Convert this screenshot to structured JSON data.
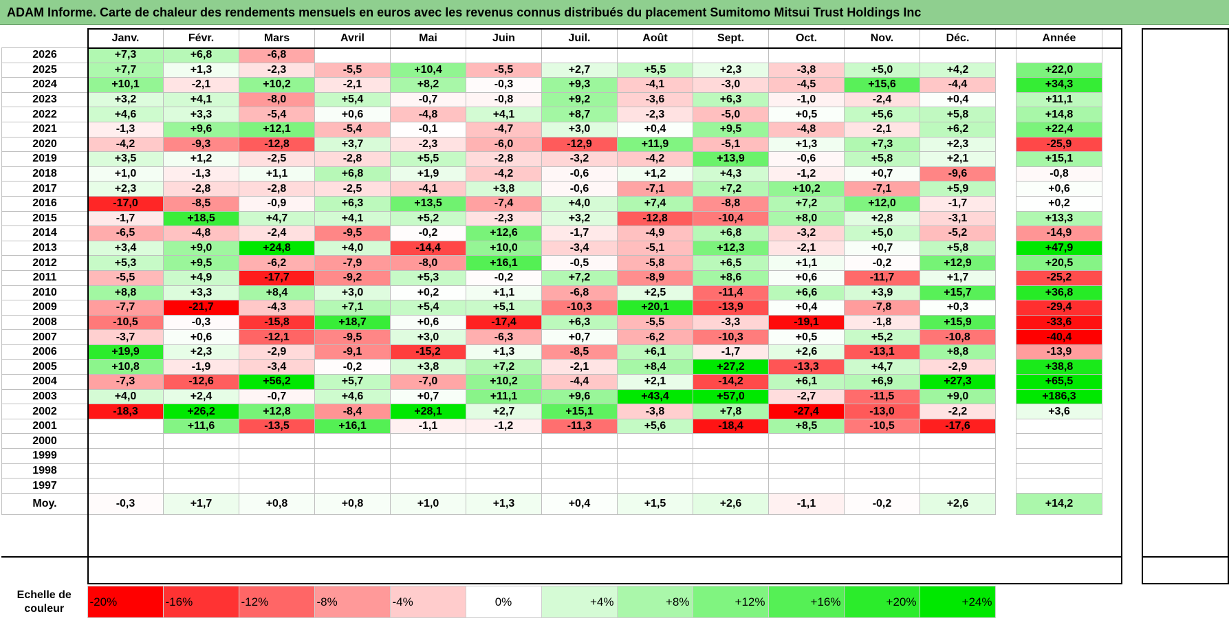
{
  "title": "ADAM Informe. Carte de chaleur des rendements mensuels en euros avec les revenus connus distribués du placement Sumitomo Mitsui Trust Holdings Inc",
  "chart_data": {
    "type": "heatmap",
    "title": "ADAM Informe. Carte de chaleur des rendements mensuels en euros avec les revenus connus distribués du placement Sumitomo Mitsui Trust Holdings Inc",
    "months": [
      "Janv.",
      "Févr.",
      "Mars",
      "Avril",
      "Mai",
      "Juin",
      "Juil.",
      "Août",
      "Sept.",
      "Oct.",
      "Nov.",
      "Déc."
    ],
    "year_header": "Année",
    "rows": [
      {
        "year": "2026",
        "values": [
          "+7,3",
          "+6,8",
          "-6,8",
          "",
          "",
          "",
          "",
          "",
          "",
          "",
          "",
          ""
        ],
        "annual": ""
      },
      {
        "year": "2025",
        "values": [
          "+7,7",
          "+1,3",
          "-2,3",
          "-5,5",
          "+10,4",
          "-5,5",
          "+2,7",
          "+5,5",
          "+2,3",
          "-3,8",
          "+5,0",
          "+4,2"
        ],
        "annual": "+22,0"
      },
      {
        "year": "2024",
        "values": [
          "+10,1",
          "-2,1",
          "+10,2",
          "-2,1",
          "+8,2",
          "-0,3",
          "+9,3",
          "-4,1",
          "-3,0",
          "-4,5",
          "+15,6",
          "-4,4"
        ],
        "annual": "+34,3"
      },
      {
        "year": "2023",
        "values": [
          "+3,2",
          "+4,1",
          "-8,0",
          "+5,4",
          "-0,7",
          "-0,8",
          "+9,2",
          "-3,6",
          "+6,3",
          "-1,0",
          "-2,4",
          "+0,4"
        ],
        "annual": "+11,1"
      },
      {
        "year": "2022",
        "values": [
          "+4,6",
          "+3,3",
          "-5,4",
          "+0,6",
          "-4,8",
          "+4,1",
          "+8,7",
          "-2,3",
          "-5,0",
          "+0,5",
          "+5,6",
          "+5,8"
        ],
        "annual": "+14,8"
      },
      {
        "year": "2021",
        "values": [
          "-1,3",
          "+9,6",
          "+12,1",
          "-5,4",
          "-0,1",
          "-4,7",
          "+3,0",
          "+0,4",
          "+9,5",
          "-4,8",
          "-2,1",
          "+6,2"
        ],
        "annual": "+22,4"
      },
      {
        "year": "2020",
        "values": [
          "-4,2",
          "-9,3",
          "-12,8",
          "+3,7",
          "-2,3",
          "-6,0",
          "-12,9",
          "+11,9",
          "-5,1",
          "+1,3",
          "+7,3",
          "+2,3"
        ],
        "annual": "-25,9"
      },
      {
        "year": "2019",
        "values": [
          "+3,5",
          "+1,2",
          "-2,5",
          "-2,8",
          "+5,5",
          "-2,8",
          "-3,2",
          "-4,2",
          "+13,9",
          "-0,6",
          "+5,8",
          "+2,1"
        ],
        "annual": "+15,1"
      },
      {
        "year": "2018",
        "values": [
          "+1,0",
          "-1,3",
          "+1,1",
          "+6,8",
          "+1,9",
          "-4,2",
          "-0,6",
          "+1,2",
          "+4,3",
          "-1,2",
          "+0,7",
          "-9,6"
        ],
        "annual": "-0,8"
      },
      {
        "year": "2017",
        "values": [
          "+2,3",
          "-2,8",
          "-2,8",
          "-2,5",
          "-4,1",
          "+3,8",
          "-0,6",
          "-7,1",
          "+7,2",
          "+10,2",
          "-7,1",
          "+5,9"
        ],
        "annual": "+0,6"
      },
      {
        "year": "2016",
        "values": [
          "-17,0",
          "-8,5",
          "-0,9",
          "+6,3",
          "+13,5",
          "-7,4",
          "+4,0",
          "+7,4",
          "-8,8",
          "+7,2",
          "+12,0",
          "-1,7"
        ],
        "annual": "+0,2"
      },
      {
        "year": "2015",
        "values": [
          "-1,7",
          "+18,5",
          "+4,7",
          "+4,1",
          "+5,2",
          "-2,3",
          "+3,2",
          "-12,8",
          "-10,4",
          "+8,0",
          "+2,8",
          "-3,1"
        ],
        "annual": "+13,3"
      },
      {
        "year": "2014",
        "values": [
          "-6,5",
          "-4,8",
          "-2,4",
          "-9,5",
          "-0,2",
          "+12,6",
          "-1,7",
          "-4,9",
          "+6,8",
          "-3,2",
          "+5,0",
          "-5,2"
        ],
        "annual": "-14,9"
      },
      {
        "year": "2013",
        "values": [
          "+3,4",
          "+9,0",
          "+24,8",
          "+4,0",
          "-14,4",
          "+10,0",
          "-3,4",
          "-5,1",
          "+12,3",
          "-2,1",
          "+0,7",
          "+5,8"
        ],
        "annual": "+47,9"
      },
      {
        "year": "2012",
        "values": [
          "+5,3",
          "+9,5",
          "-6,2",
          "-7,9",
          "-8,0",
          "+16,1",
          "-0,5",
          "-5,8",
          "+6,5",
          "+1,1",
          "-0,2",
          "+12,9"
        ],
        "annual": "+20,5"
      },
      {
        "year": "2011",
        "values": [
          "-5,5",
          "+4,9",
          "-17,7",
          "-9,2",
          "+5,3",
          "-0,2",
          "+7,2",
          "-8,9",
          "+8,6",
          "+0,6",
          "-11,7",
          "+1,7"
        ],
        "annual": "-25,2"
      },
      {
        "year": "2010",
        "values": [
          "+8,8",
          "+3,3",
          "+8,4",
          "+3,0",
          "+0,2",
          "+1,1",
          "-6,8",
          "+2,5",
          "-11,4",
          "+6,6",
          "+3,9",
          "+15,7"
        ],
        "annual": "+36,8"
      },
      {
        "year": "2009",
        "values": [
          "-7,7",
          "-21,7",
          "-4,3",
          "+7,1",
          "+5,4",
          "+5,1",
          "-10,3",
          "+20,1",
          "-13,9",
          "+0,4",
          "-7,8",
          "+0,3"
        ],
        "annual": "-29,4"
      },
      {
        "year": "2008",
        "values": [
          "-10,5",
          "-0,3",
          "-15,8",
          "+18,7",
          "+0,6",
          "-17,4",
          "+6,3",
          "-5,5",
          "-3,3",
          "-19,1",
          "-1,8",
          "+15,9"
        ],
        "annual": "-33,6"
      },
      {
        "year": "2007",
        "values": [
          "-3,7",
          "+0,6",
          "-12,1",
          "-9,5",
          "+3,0",
          "-6,3",
          "+0,7",
          "-6,2",
          "-10,3",
          "+0,5",
          "+5,2",
          "-10,8"
        ],
        "annual": "-40,4"
      },
      {
        "year": "2006",
        "values": [
          "+19,9",
          "+2,3",
          "-2,9",
          "-9,1",
          "-15,2",
          "+1,3",
          "-8,5",
          "+6,1",
          "-1,7",
          "+2,6",
          "-13,1",
          "+8,8"
        ],
        "annual": "-13,9"
      },
      {
        "year": "2005",
        "values": [
          "+10,8",
          "-1,9",
          "-3,4",
          "-0,2",
          "+3,8",
          "+7,2",
          "-2,1",
          "+8,4",
          "+27,2",
          "-13,3",
          "+4,7",
          "-2,9"
        ],
        "annual": "+38,8"
      },
      {
        "year": "2004",
        "values": [
          "-7,3",
          "-12,6",
          "+56,2",
          "+5,7",
          "-7,0",
          "+10,2",
          "-4,4",
          "+2,1",
          "-14,2",
          "+6,1",
          "+6,9",
          "+27,3"
        ],
        "annual": "+65,5"
      },
      {
        "year": "2003",
        "values": [
          "+4,0",
          "+2,4",
          "-0,7",
          "+4,6",
          "+0,7",
          "+11,1",
          "+9,6",
          "+43,4",
          "+57,0",
          "-2,7",
          "-11,5",
          "+9,0"
        ],
        "annual": "+186,3"
      },
      {
        "year": "2002",
        "values": [
          "-18,3",
          "+26,2",
          "+12,8",
          "-8,4",
          "+28,1",
          "+2,7",
          "+15,1",
          "-3,8",
          "+7,8",
          "-27,4",
          "-13,0",
          "-2,2"
        ],
        "annual": "+3,6"
      },
      {
        "year": "2001",
        "values": [
          "",
          "+11,6",
          "-13,5",
          "+16,1",
          "-1,1",
          "-1,2",
          "-11,3",
          "+5,6",
          "-18,4",
          "+8,5",
          "-10,5",
          "-17,6"
        ],
        "annual": ""
      },
      {
        "year": "2000",
        "values": [
          "",
          "",
          "",
          "",
          "",
          "",
          "",
          "",
          "",
          "",
          "",
          ""
        ],
        "annual": ""
      },
      {
        "year": "1999",
        "values": [
          "",
          "",
          "",
          "",
          "",
          "",
          "",
          "",
          "",
          "",
          "",
          ""
        ],
        "annual": ""
      },
      {
        "year": "1998",
        "values": [
          "",
          "",
          "",
          "",
          "",
          "",
          "",
          "",
          "",
          "",
          "",
          ""
        ],
        "annual": ""
      },
      {
        "year": "1997",
        "values": [
          "",
          "",
          "",
          "",
          "",
          "",
          "",
          "",
          "",
          "",
          "",
          ""
        ],
        "annual": ""
      }
    ],
    "average": {
      "label": "Moy.",
      "values": [
        "-0,3",
        "+1,7",
        "+0,8",
        "+0,8",
        "+1,0",
        "+1,3",
        "+0,4",
        "+1,5",
        "+2,6",
        "-1,1",
        "-0,2",
        "+2,6"
      ],
      "annual": "+14,2"
    },
    "scale": {
      "label": "Echelle de couleur",
      "stops": [
        "-20%",
        "-16%",
        "-12%",
        "-8%",
        "-4%",
        "0%",
        "+4%",
        "+8%",
        "+12%",
        "+16%",
        "+20%",
        "+24%"
      ],
      "stop_values": [
        -20,
        -16,
        -12,
        -8,
        -4,
        0,
        4,
        8,
        12,
        16,
        20,
        24
      ]
    }
  }
}
